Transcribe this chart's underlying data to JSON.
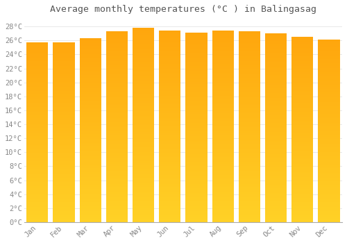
{
  "title": "Average monthly temperatures (°C ) in Balingasag",
  "months": [
    "Jan",
    "Feb",
    "Mar",
    "Apr",
    "May",
    "Jun",
    "Jul",
    "Aug",
    "Sep",
    "Oct",
    "Nov",
    "Dec"
  ],
  "temperatures": [
    25.7,
    25.7,
    26.3,
    27.3,
    27.8,
    27.4,
    27.1,
    27.4,
    27.3,
    27.0,
    26.5,
    26.1
  ],
  "ylim": [
    0,
    29
  ],
  "yticks": [
    0,
    2,
    4,
    6,
    8,
    10,
    12,
    14,
    16,
    18,
    20,
    22,
    24,
    26,
    28
  ],
  "ytick_labels": [
    "0°C",
    "2°C",
    "4°C",
    "6°C",
    "8°C",
    "10°C",
    "12°C",
    "14°C",
    "16°C",
    "18°C",
    "20°C",
    "22°C",
    "24°C",
    "26°C",
    "28°C"
  ],
  "bar_color_top": "#FFA500",
  "bar_color_bottom": "#FFD040",
  "background_color": "#FFFFFF",
  "grid_color": "#E8E8E8",
  "title_fontsize": 9.5,
  "tick_fontsize": 7.5,
  "title_color": "#555555",
  "tick_color": "#888888",
  "bar_width": 0.82
}
